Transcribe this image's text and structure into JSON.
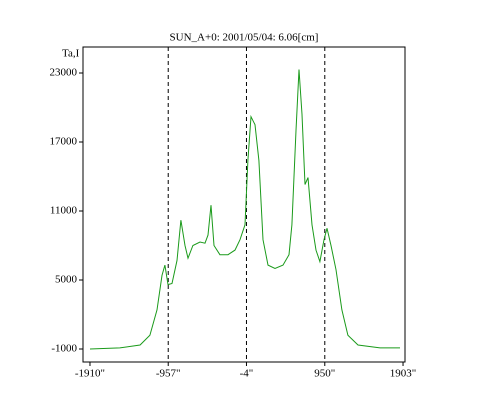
{
  "chart_data": {
    "type": "line",
    "title": "SUN_A+0: 2001/05/04: 6.06[cm]",
    "y_label": "Ta,I",
    "xlim": [
      -1995,
      1927
    ],
    "ylim": [
      -2130,
      25260
    ],
    "xticks": [
      {
        "value": -1910,
        "label": "-1910\""
      },
      {
        "value": -957,
        "label": "-957\""
      },
      {
        "value": -4,
        "label": "-4\""
      },
      {
        "value": 950,
        "label": "950\""
      },
      {
        "value": 1903,
        "label": "1903\""
      }
    ],
    "yticks": [
      -1000,
      5000,
      11000,
      17000,
      23000
    ],
    "vlines": [
      -957,
      -4,
      950
    ],
    "series": [
      {
        "color": "#1a9a1a",
        "x": [
          -1910,
          -1545,
          -1300,
          -1180,
          -1094,
          -1033,
          -997,
          -960,
          -911,
          -850,
          -802,
          -753,
          -716,
          -656,
          -570,
          -509,
          -473,
          -436,
          -400,
          -327,
          -229,
          -144,
          -83,
          -22,
          14,
          51,
          100,
          148,
          197,
          258,
          343,
          441,
          514,
          550,
          599,
          636,
          672,
          709,
          745,
          794,
          843,
          891,
          940,
          977,
          1026,
          1086,
          1159,
          1232,
          1354,
          1622,
          1866
        ],
        "values": [
          -1000,
          -900,
          -650,
          200,
          2400,
          5400,
          6300,
          4600,
          4700,
          6700,
          10200,
          8000,
          6900,
          8000,
          8300,
          8200,
          8900,
          11500,
          8000,
          7200,
          7200,
          7600,
          8500,
          9800,
          15400,
          19200,
          18500,
          15400,
          8500,
          6300,
          6000,
          6300,
          7200,
          9800,
          18000,
          23300,
          19400,
          13300,
          13900,
          9800,
          7600,
          6600,
          8500,
          9500,
          8000,
          5900,
          2400,
          200,
          -650,
          -900,
          -900
        ]
      }
    ]
  }
}
